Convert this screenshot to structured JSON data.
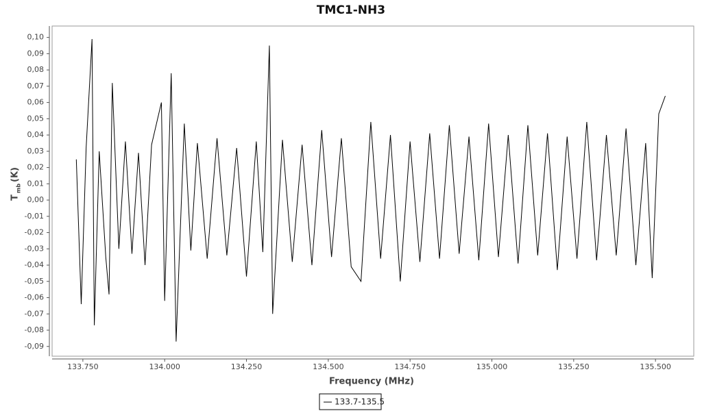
{
  "chart_data": {
    "type": "line",
    "title": "TMC1-NH3",
    "x_label": "Frequency (MHz)",
    "y_label": "T",
    "y_label_sub": "mb",
    "y_label_unit": "(K)",
    "xlim": [
      133.656,
      135.617
    ],
    "ylim": [
      -0.096,
      0.107
    ],
    "xticks": [
      {
        "value": 133.75,
        "label": "133.750"
      },
      {
        "value": 134.0,
        "label": "134.000"
      },
      {
        "value": 134.25,
        "label": "134.250"
      },
      {
        "value": 134.5,
        "label": "134.500"
      },
      {
        "value": 134.75,
        "label": "134.750"
      },
      {
        "value": 135.0,
        "label": "135.000"
      },
      {
        "value": 135.25,
        "label": "135.250"
      },
      {
        "value": 135.5,
        "label": "135.500"
      }
    ],
    "yticks": [
      {
        "value": 0.1,
        "label": "0,10"
      },
      {
        "value": 0.09,
        "label": "0,09"
      },
      {
        "value": 0.08,
        "label": "0,08"
      },
      {
        "value": 0.07,
        "label": "0,07"
      },
      {
        "value": 0.06,
        "label": "0,06"
      },
      {
        "value": 0.05,
        "label": "0,05"
      },
      {
        "value": 0.04,
        "label": "0,04"
      },
      {
        "value": 0.03,
        "label": "0,03"
      },
      {
        "value": 0.02,
        "label": "0,02"
      },
      {
        "value": 0.01,
        "label": "0,01"
      },
      {
        "value": 0.0,
        "label": "0,00"
      },
      {
        "value": -0.01,
        "label": "-0,01"
      },
      {
        "value": -0.02,
        "label": "-0,02"
      },
      {
        "value": -0.03,
        "label": "-0,03"
      },
      {
        "value": -0.04,
        "label": "-0,04"
      },
      {
        "value": -0.05,
        "label": "-0,05"
      },
      {
        "value": -0.06,
        "label": "-0,06"
      },
      {
        "value": -0.07,
        "label": "-0,07"
      },
      {
        "value": -0.08,
        "label": "-0,08"
      },
      {
        "value": -0.09,
        "label": "-0,09"
      }
    ],
    "x": [
      133.73,
      133.745,
      133.76,
      133.778,
      133.785,
      133.8,
      133.82,
      133.83,
      133.84,
      133.86,
      133.88,
      133.9,
      133.92,
      133.94,
      133.96,
      133.99,
      134.0,
      134.02,
      134.035,
      134.06,
      134.08,
      134.1,
      134.13,
      134.16,
      134.19,
      134.22,
      134.25,
      134.28,
      134.3,
      134.32,
      134.33,
      134.36,
      134.39,
      134.42,
      134.45,
      134.48,
      134.51,
      134.54,
      134.57,
      134.6,
      134.63,
      134.66,
      134.69,
      134.72,
      134.75,
      134.78,
      134.81,
      134.84,
      134.87,
      134.9,
      134.93,
      134.96,
      134.99,
      135.02,
      135.05,
      135.08,
      135.11,
      135.14,
      135.17,
      135.2,
      135.23,
      135.26,
      135.29,
      135.32,
      135.35,
      135.38,
      135.41,
      135.44,
      135.47,
      135.49,
      135.51,
      135.53
    ],
    "series": [
      {
        "name": "133.7-135.5",
        "color": "#000000",
        "values": [
          0.025,
          -0.064,
          0.032,
          0.099,
          -0.077,
          0.03,
          -0.035,
          -0.058,
          0.072,
          -0.03,
          0.036,
          -0.033,
          0.029,
          -0.04,
          0.034,
          0.06,
          -0.062,
          0.078,
          -0.087,
          0.047,
          -0.031,
          0.035,
          -0.036,
          0.038,
          -0.034,
          0.032,
          -0.047,
          0.036,
          -0.032,
          0.095,
          -0.07,
          0.037,
          -0.038,
          0.034,
          -0.04,
          0.043,
          -0.035,
          0.038,
          -0.041,
          -0.05,
          0.048,
          -0.036,
          0.04,
          -0.05,
          0.036,
          -0.038,
          0.041,
          -0.036,
          0.046,
          -0.033,
          0.039,
          -0.037,
          0.047,
          -0.035,
          0.04,
          -0.039,
          0.046,
          -0.034,
          0.041,
          -0.043,
          0.039,
          -0.036,
          0.048,
          -0.037,
          0.04,
          -0.034,
          0.044,
          -0.04,
          0.035,
          -0.048,
          0.053,
          0.064
        ]
      }
    ],
    "grid": false,
    "legend": "bottom"
  }
}
